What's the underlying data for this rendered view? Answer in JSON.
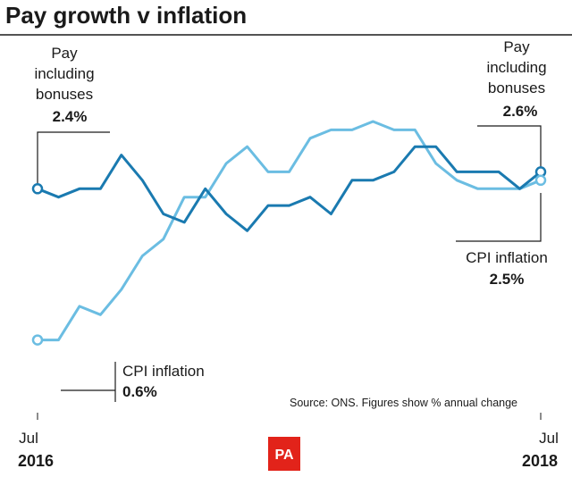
{
  "chart_data": {
    "type": "line",
    "title": "Pay growth v inflation",
    "source_note": "Source: ONS. Figures show % annual change",
    "x_start": {
      "month": "Jul",
      "year": "2016"
    },
    "x_end": {
      "month": "Jul",
      "year": "2018"
    },
    "ylim": [
      0.0,
      3.2
    ],
    "grid": false,
    "colors": {
      "pay": "#1a7ab0",
      "cpi": "#6bbde2"
    },
    "series": [
      {
        "name": "Pay including bonuses",
        "key": "pay",
        "values": [
          2.4,
          2.3,
          2.4,
          2.4,
          2.8,
          2.5,
          2.1,
          2.0,
          2.4,
          2.1,
          1.9,
          2.2,
          2.2,
          2.3,
          2.1,
          2.5,
          2.5,
          2.6,
          2.9,
          2.9,
          2.6,
          2.6,
          2.6,
          2.4,
          2.6
        ]
      },
      {
        "name": "CPI inflation",
        "key": "cpi",
        "values": [
          0.6,
          0.6,
          1.0,
          0.9,
          1.2,
          1.6,
          1.8,
          2.3,
          2.3,
          2.7,
          2.9,
          2.6,
          2.6,
          3.0,
          3.1,
          3.1,
          3.2,
          3.1,
          3.1,
          2.7,
          2.5,
          2.4,
          2.4,
          2.4,
          2.5
        ]
      }
    ],
    "annotations": {
      "pay_start": {
        "lines": [
          "Pay",
          "including",
          "bonuses"
        ],
        "value": "2.4%"
      },
      "pay_end": {
        "lines": [
          "Pay",
          "including",
          "bonuses"
        ],
        "value": "2.6%"
      },
      "cpi_start": {
        "label": "CPI inflation",
        "value": "0.6%"
      },
      "cpi_end": {
        "label": "CPI inflation",
        "value": "2.5%"
      }
    }
  },
  "logo": {
    "text": "PA",
    "color": "#e2231a"
  }
}
